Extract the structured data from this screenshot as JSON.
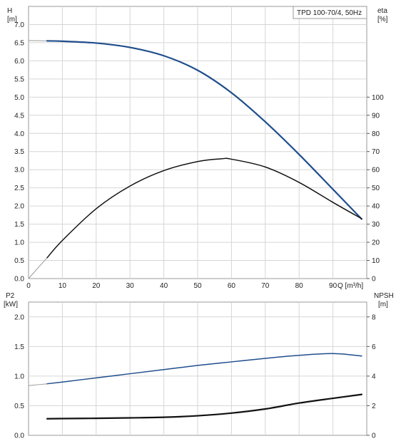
{
  "chart_data": [
    {
      "id": "head-efficiency",
      "type": "line",
      "title": "TPD 100-70/4, 50Hz",
      "x_axis": {
        "label": "Q [m³/h]",
        "range": [
          0,
          100
        ],
        "ticks": [
          0,
          10,
          20,
          30,
          40,
          50,
          60,
          70,
          80,
          90
        ],
        "tick_labels": [
          "0",
          "10",
          "20",
          "30",
          "40",
          "50",
          "60",
          "70",
          "80",
          "90"
        ]
      },
      "left_axis": {
        "label_line1": "H",
        "label_line2": "[m]",
        "range": [
          0,
          7.5
        ],
        "ticks": [
          0,
          0.5,
          1,
          1.5,
          2,
          2.5,
          3,
          3.5,
          4,
          4.5,
          5,
          5.5,
          6,
          6.5,
          7
        ],
        "tick_labels": [
          "0.0",
          "0.5",
          "1.0",
          "1.5",
          "2.0",
          "2.5",
          "3.0",
          "3.5",
          "4.0",
          "4.5",
          "5.0",
          "5.5",
          "6.0",
          "6.5",
          "7.0"
        ]
      },
      "right_axis": {
        "label_line1": "eta",
        "label_line2": "[%]",
        "range": [
          0,
          150
        ],
        "ticks": [
          0,
          10,
          20,
          30,
          40,
          50,
          60,
          70,
          80,
          90,
          100
        ],
        "tick_labels": [
          "0",
          "10",
          "20",
          "30",
          "40",
          "50",
          "60",
          "70",
          "80",
          "90",
          "100"
        ]
      },
      "grid": true,
      "series": [
        {
          "axis": "left",
          "color": "#1f4e8c",
          "width": 2.2,
          "x": [
            0,
            5.5,
            10,
            20,
            30,
            40,
            50,
            60,
            70,
            80,
            90,
            98.5
          ],
          "y": [
            6.56,
            6.55,
            6.54,
            6.49,
            6.37,
            6.14,
            5.74,
            5.12,
            4.32,
            3.42,
            2.46,
            1.64
          ],
          "thin_extension_from_x": 5.5
        },
        {
          "axis": "right",
          "color": "#111111",
          "width": 1.5,
          "x": [
            0,
            5.5,
            10,
            20,
            30,
            40,
            50,
            57,
            60,
            70,
            80,
            90,
            98.5
          ],
          "y": [
            0,
            11.5,
            21,
            38.5,
            51,
            59.5,
            64.5,
            66,
            65.8,
            61.5,
            53,
            42,
            33
          ],
          "thin_extension_from_x": 5.5
        }
      ]
    },
    {
      "id": "power-npsh",
      "type": "line",
      "x_axis": {
        "range": [
          0,
          100
        ],
        "ticks": [
          0,
          10,
          20,
          30,
          40,
          50,
          60,
          70,
          80,
          90
        ]
      },
      "left_axis": {
        "label_line1": "P2",
        "label_line2": "[kW]",
        "range": [
          0,
          2.25
        ],
        "ticks": [
          0,
          0.5,
          1,
          1.5,
          2
        ],
        "tick_labels": [
          "0.0",
          "0.5",
          "1.0",
          "1.5",
          "2.0"
        ]
      },
      "right_axis": {
        "label_line1": "NPSH",
        "label_line2": "[m]",
        "range": [
          0,
          9
        ],
        "ticks": [
          0,
          2,
          4,
          6,
          8
        ],
        "tick_labels": [
          "0",
          "2",
          "4",
          "6",
          "8"
        ]
      },
      "grid": true,
      "series": [
        {
          "axis": "left",
          "color": "#1f4e8c",
          "width": 1.5,
          "x": [
            0,
            5.5,
            10,
            20,
            30,
            40,
            50,
            60,
            70,
            80,
            90,
            98.5
          ],
          "y": [
            0.84,
            0.87,
            0.9,
            0.97,
            1.04,
            1.11,
            1.18,
            1.24,
            1.3,
            1.35,
            1.38,
            1.34
          ],
          "thin_extension_from_x": 5.5
        },
        {
          "axis": "right",
          "color": "#111111",
          "width": 2.2,
          "x": [
            5.5,
            10,
            20,
            30,
            40,
            50,
            60,
            70,
            80,
            90,
            98.5
          ],
          "y": [
            1.12,
            1.13,
            1.15,
            1.18,
            1.22,
            1.32,
            1.5,
            1.78,
            2.18,
            2.5,
            2.76
          ]
        }
      ]
    }
  ]
}
